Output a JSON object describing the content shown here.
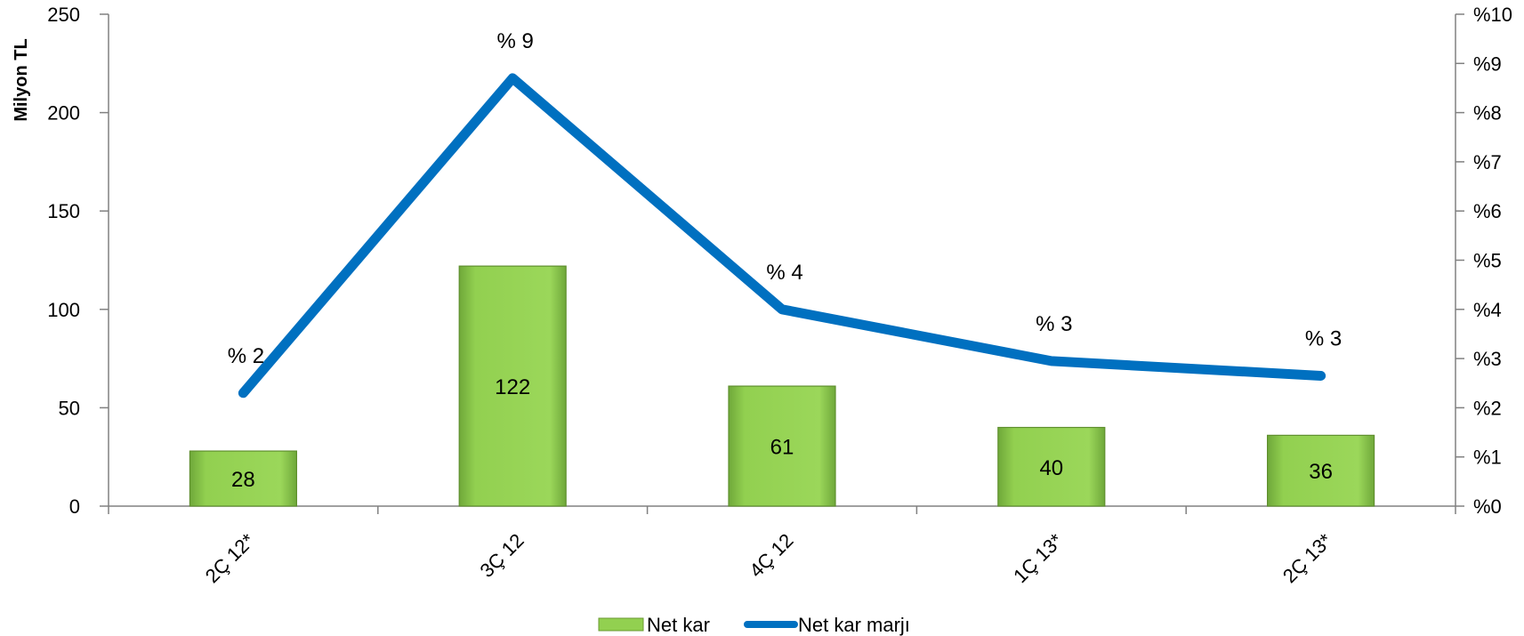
{
  "chart_data": {
    "type": "bar",
    "categories": [
      "2Ç 12*",
      "3Ç 12",
      "4Ç 12",
      "1Ç 13*",
      "2Ç 13*"
    ],
    "series": [
      {
        "name": "Net kar",
        "type": "bar",
        "axis": "left",
        "values": [
          28,
          122,
          61,
          40,
          36
        ],
        "value_labels": [
          "28",
          "122",
          "61",
          "40",
          "36"
        ],
        "color": "#92d050"
      },
      {
        "name": "Net kar marjı",
        "type": "line",
        "axis": "right",
        "values": [
          2.3,
          8.7,
          4.0,
          2.95,
          2.65
        ],
        "value_labels": [
          "% 2",
          "% 9",
          "% 4",
          "% 3",
          "% 3"
        ],
        "color": "#0070c0"
      }
    ],
    "ylabel": "Milyon TL",
    "ylim": [
      0,
      250
    ],
    "yticks": [
      "0",
      "50",
      "100",
      "150",
      "200",
      "250"
    ],
    "y2lim": [
      0,
      10
    ],
    "y2ticks": [
      "%0",
      "%1",
      "%2",
      "%3",
      "%4",
      "%5",
      "%6",
      "%7",
      "%8",
      "%9",
      "%10"
    ],
    "legend_position": "bottom",
    "grid": false
  }
}
